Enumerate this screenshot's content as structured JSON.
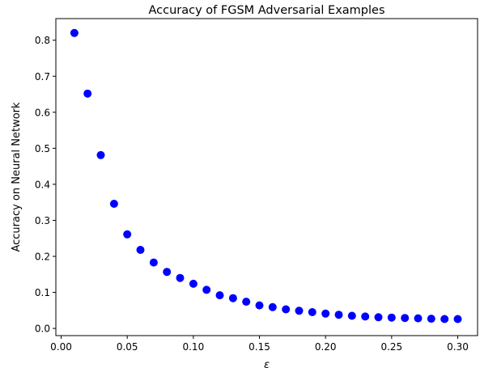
{
  "chart_data": {
    "type": "scatter",
    "title": "Accuracy of FGSM Adversarial Examples",
    "xlabel": "ε",
    "ylabel": "Accuracy on Neural Network",
    "xlim": [
      -0.004,
      0.315
    ],
    "ylim": [
      -0.02,
      0.86
    ],
    "xticks": [
      0.0,
      0.05,
      0.1,
      0.15,
      0.2,
      0.25,
      0.3
    ],
    "xtick_labels": [
      "0.00",
      "0.05",
      "0.10",
      "0.15",
      "0.20",
      "0.25",
      "0.30"
    ],
    "yticks": [
      0.0,
      0.1,
      0.2,
      0.3,
      0.4,
      0.5,
      0.6,
      0.7,
      0.8
    ],
    "ytick_labels": [
      "0.0",
      "0.1",
      "0.2",
      "0.3",
      "0.4",
      "0.5",
      "0.6",
      "0.7",
      "0.8"
    ],
    "grid": false,
    "series": [
      {
        "color": "#0000ff",
        "marker": "circle",
        "x": [
          0.01,
          0.02,
          0.03,
          0.04,
          0.05,
          0.06,
          0.07,
          0.08,
          0.09,
          0.1,
          0.11,
          0.12,
          0.13,
          0.14,
          0.15,
          0.16,
          0.17,
          0.18,
          0.19,
          0.2,
          0.21,
          0.22,
          0.23,
          0.24,
          0.25,
          0.26,
          0.27,
          0.28,
          0.29,
          0.3
        ],
        "y": [
          0.82,
          0.652,
          0.481,
          0.346,
          0.261,
          0.218,
          0.183,
          0.157,
          0.14,
          0.124,
          0.107,
          0.092,
          0.084,
          0.074,
          0.064,
          0.059,
          0.053,
          0.049,
          0.045,
          0.041,
          0.038,
          0.035,
          0.033,
          0.031,
          0.03,
          0.029,
          0.028,
          0.027,
          0.026,
          0.026
        ]
      }
    ]
  }
}
